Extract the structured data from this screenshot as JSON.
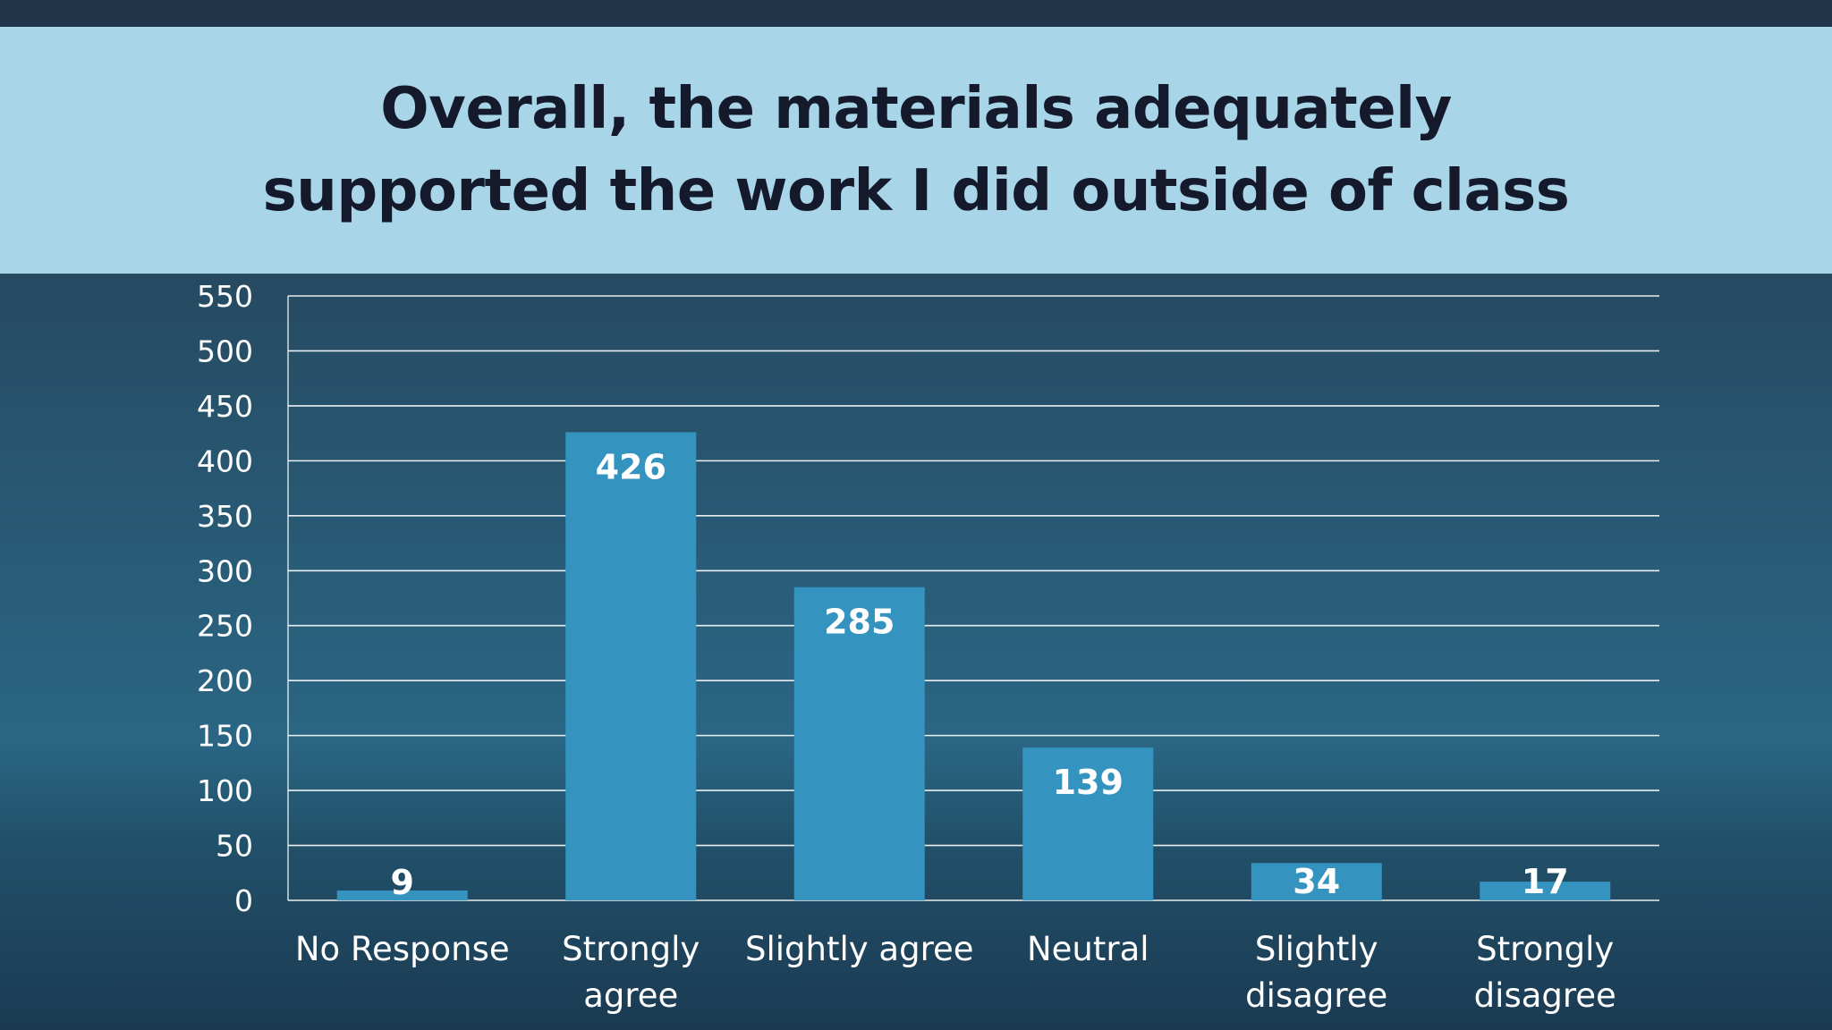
{
  "slide": {
    "title": "Overall, the materials adequately\nsupported the work I did outside of class"
  },
  "colors": {
    "title_band": "#a8d6e8",
    "title_text": "#14192b",
    "bar_fill": "#3594bf",
    "gridline": "#ffffff",
    "axis_text": "#ffffff"
  },
  "chart_data": {
    "type": "bar",
    "title": "Overall, the materials adequately supported the work I did outside of class",
    "xlabel": "",
    "ylabel": "",
    "categories": [
      "No Response",
      "Strongly agree",
      "Slightly agree",
      "Neutral",
      "Slightly disagree",
      "Strongly disagree"
    ],
    "category_lines": [
      [
        "No Response"
      ],
      [
        "Strongly",
        "agree"
      ],
      [
        "Slightly agree"
      ],
      [
        "Neutral"
      ],
      [
        "Slightly",
        "disagree"
      ],
      [
        "Strongly",
        "disagree"
      ]
    ],
    "values": [
      9,
      426,
      285,
      139,
      34,
      17
    ],
    "ylim": [
      0,
      550
    ],
    "yticks": [
      0,
      50,
      100,
      150,
      200,
      250,
      300,
      350,
      400,
      450,
      500,
      550
    ],
    "grid": true,
    "legend": "none",
    "data_labels": true
  }
}
